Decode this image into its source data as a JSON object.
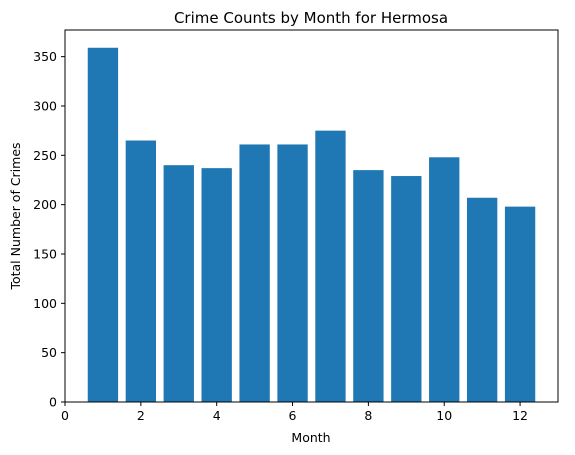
{
  "chart_data": {
    "type": "bar",
    "title": "Crime Counts by Month for Hermosa",
    "xlabel": "Month",
    "ylabel": "Total Number of Crimes",
    "categories": [
      1,
      2,
      3,
      4,
      5,
      6,
      7,
      8,
      9,
      10,
      11,
      12
    ],
    "values": [
      359,
      265,
      240,
      237,
      261,
      261,
      275,
      235,
      229,
      248,
      207,
      198
    ],
    "xlim": [
      0,
      13
    ],
    "ylim": [
      0,
      377
    ],
    "xticks": [
      "0",
      "2",
      "4",
      "6",
      "8",
      "10",
      "12"
    ],
    "yticks": [
      "0",
      "50",
      "100",
      "150",
      "200",
      "250",
      "300",
      "350"
    ],
    "grid": false,
    "legend": "none",
    "bar_color": "#1f77b4"
  }
}
